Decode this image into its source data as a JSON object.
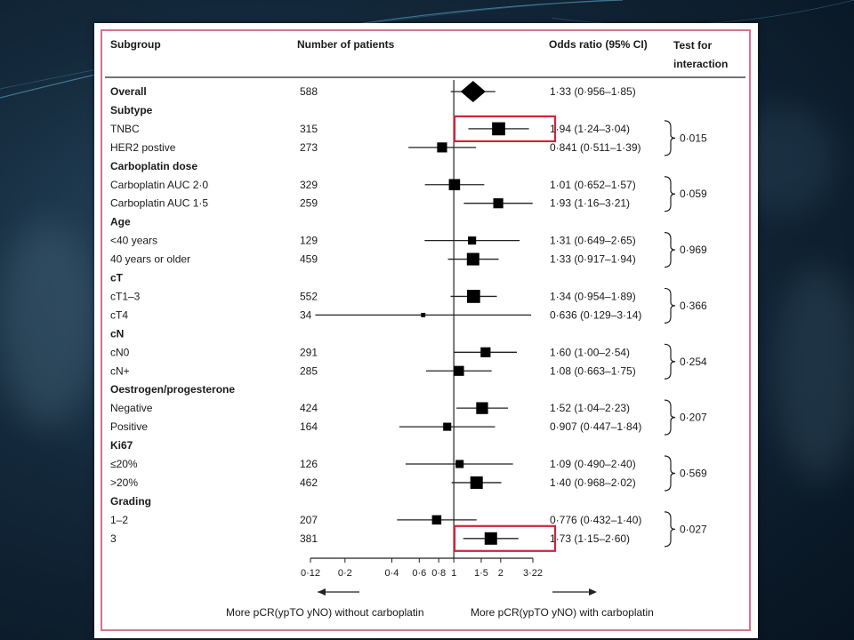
{
  "chart_data": {
    "type": "forest",
    "headers": {
      "subgroup": "Subgroup",
      "patients": "Number of patients",
      "or": "Odds ratio (95% CI)",
      "interaction_1": "Test for",
      "interaction_2": "interaction"
    },
    "x_scale": "log",
    "xlim": [
      0.12,
      3.22
    ],
    "ticks": [
      {
        "v": 0.12,
        "label": "0·12"
      },
      {
        "v": 0.2,
        "label": "0·2"
      },
      {
        "v": 0.4,
        "label": "0·4"
      },
      {
        "v": 0.6,
        "label": "0·6"
      },
      {
        "v": 0.8,
        "label": "0·8"
      },
      {
        "v": 1,
        "label": "1"
      },
      {
        "v": 1.5,
        "label": "1·5"
      },
      {
        "v": 2,
        "label": "2"
      },
      {
        "v": 3.22,
        "label": "3·22"
      }
    ],
    "rows": [
      {
        "label": "Overall",
        "n": "588",
        "or": 1.33,
        "lo": 0.956,
        "hi": 1.85,
        "text": "1·33 (0·956–1·85)",
        "shape": "diamond",
        "bold": true
      },
      {
        "label": "Subtype",
        "header": true
      },
      {
        "label": "TNBC",
        "n": "315",
        "or": 1.94,
        "lo": 1.24,
        "hi": 3.04,
        "text": "1·94 (1·24–3·04)",
        "w": 2.1
      },
      {
        "label": "HER2 postive",
        "n": "273",
        "or": 0.841,
        "lo": 0.511,
        "hi": 1.39,
        "text": "0·841 (0·511–1·39)",
        "w": 1.6
      },
      {
        "label": "Carboplatin dose",
        "header": true
      },
      {
        "label": "Carboplatin AUC 2·0",
        "n": "329",
        "or": 1.01,
        "lo": 0.652,
        "hi": 1.57,
        "text": "1·01 (0·652–1·57)",
        "w": 1.8
      },
      {
        "label": "Carboplatin AUC 1·5",
        "n": "259",
        "or": 1.93,
        "lo": 1.16,
        "hi": 3.21,
        "text": "1·93 (1·16–3·21)",
        "w": 1.6
      },
      {
        "label": "Age",
        "header": true
      },
      {
        "label": "<40 years",
        "n": "129",
        "or": 1.31,
        "lo": 0.649,
        "hi": 2.65,
        "text": "1·31 (0·649–2·65)",
        "w": 1.3
      },
      {
        "label": "40 years or older",
        "n": "459",
        "or": 1.33,
        "lo": 0.917,
        "hi": 1.94,
        "text": "1·33 (0·917–1·94)",
        "w": 2.0
      },
      {
        "label": "cT",
        "header": true
      },
      {
        "label": "cT1–3",
        "n": "552",
        "or": 1.34,
        "lo": 0.954,
        "hi": 1.89,
        "text": "1·34 (0·954–1·89)",
        "w": 2.1
      },
      {
        "label": "cT4",
        "n": "34",
        "or": 0.636,
        "lo": 0.129,
        "hi": 3.14,
        "text": "0·636 (0·129–3·14)",
        "w": 0.7
      },
      {
        "label": "cN",
        "header": true
      },
      {
        "label": "cN0",
        "n": "291",
        "or": 1.6,
        "lo": 1.0,
        "hi": 2.54,
        "text": "1·60 (1·00–2·54)",
        "w": 1.6
      },
      {
        "label": "cN+",
        "n": "285",
        "or": 1.08,
        "lo": 0.663,
        "hi": 1.75,
        "text": "1·08 (0·663–1·75)",
        "w": 1.6
      },
      {
        "label": "Oestrogen/progesterone",
        "header": true
      },
      {
        "label": "Negative",
        "n": "424",
        "or": 1.52,
        "lo": 1.04,
        "hi": 2.23,
        "text": "1·52 (1·04–2·23)",
        "w": 1.9
      },
      {
        "label": "Positive",
        "n": "164",
        "or": 0.907,
        "lo": 0.447,
        "hi": 1.84,
        "text": "0·907 (0·447–1·84)",
        "w": 1.3
      },
      {
        "label": "Ki67",
        "header": true
      },
      {
        "label": "≤20%",
        "n": "126",
        "or": 1.09,
        "lo": 0.49,
        "hi": 2.4,
        "text": "1·09 (0·490–2·40)",
        "w": 1.3
      },
      {
        "label": ">20%",
        "n": "462",
        "or": 1.4,
        "lo": 0.968,
        "hi": 2.02,
        "text": "1·40 (0·968–2·02)",
        "w": 2.0
      },
      {
        "label": "Grading",
        "header": true
      },
      {
        "label": "1–2",
        "n": "207",
        "or": 0.776,
        "lo": 0.432,
        "hi": 1.4,
        "text": "0·776 (0·432–1·40)",
        "w": 1.5
      },
      {
        "label": "3",
        "n": "381",
        "or": 1.73,
        "lo": 1.15,
        "hi": 2.6,
        "text": "1·73 (1·15–2·60)",
        "w": 2.0
      }
    ],
    "interactions": [
      {
        "rows": [
          2,
          3
        ],
        "p": "0·015"
      },
      {
        "rows": [
          5,
          6
        ],
        "p": "0·059"
      },
      {
        "rows": [
          8,
          9
        ],
        "p": "0·969"
      },
      {
        "rows": [
          11,
          12
        ],
        "p": "0·366"
      },
      {
        "rows": [
          14,
          15
        ],
        "p": "0·254"
      },
      {
        "rows": [
          17,
          18
        ],
        "p": "0·207"
      },
      {
        "rows": [
          20,
          21
        ],
        "p": "0·569"
      },
      {
        "rows": [
          23,
          24
        ],
        "p": "0·027"
      }
    ],
    "highlighted_rows": [
      2,
      24
    ],
    "highlight_color": "#d0243a",
    "footer": {
      "left": "More pCR(ypTO yNO) without carboplatin",
      "right": "More pCR(ypTO yNO) with carboplatin"
    }
  }
}
